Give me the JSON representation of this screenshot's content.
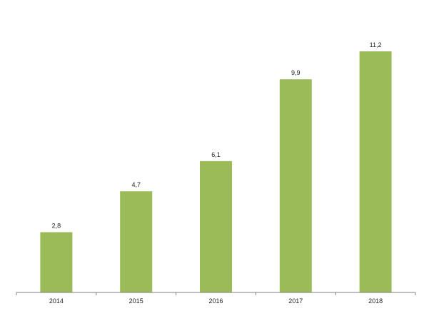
{
  "chart_data": {
    "type": "bar",
    "categories": [
      "2014",
      "2015",
      "2016",
      "2017",
      "2018"
    ],
    "values": [
      2.8,
      4.7,
      6.1,
      9.9,
      11.2
    ],
    "value_labels": [
      "2,8",
      "4,7",
      "6,1",
      "9,9",
      "11,2"
    ],
    "ylim": [
      0,
      11.2
    ],
    "grid": false,
    "legend": "none",
    "bar_color": "#9bbb59",
    "axis_color": "#7f7f7f"
  }
}
